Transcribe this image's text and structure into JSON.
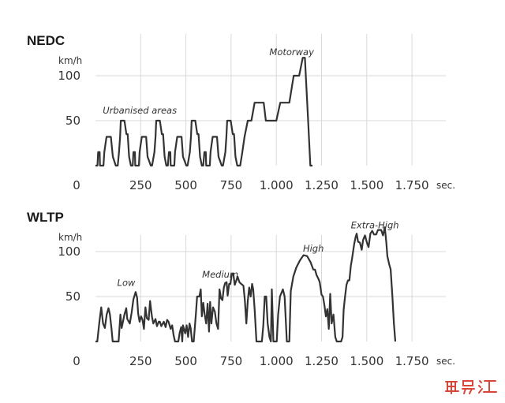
{
  "chart_data": [
    {
      "type": "line",
      "title": "NEDC",
      "unit": "km/h",
      "x_unit": "sec.",
      "x_ticks": [
        0,
        250,
        500,
        750,
        1000,
        1250,
        1500,
        1750
      ],
      "x_tick_labels": [
        "0",
        "250",
        "500",
        "750",
        "1.000",
        "1.250",
        "1.500",
        "1.750"
      ],
      "y_ticks": [
        50,
        100
      ],
      "y_tick_labels": [
        "50",
        "100"
      ],
      "xlim": [
        0,
        1800
      ],
      "ylim": [
        0,
        130
      ],
      "grid": true,
      "annotations": [
        {
          "text": "Urbanised areas",
          "x": 245,
          "y": 58
        },
        {
          "text": "Motorway",
          "x": 1085,
          "y": 123
        }
      ],
      "series": [
        {
          "values": [
            [
              0,
              0
            ],
            [
              11,
              0
            ],
            [
              15,
              15
            ],
            [
              23,
              15
            ],
            [
              25,
              0
            ],
            [
              44,
              0
            ],
            [
              49,
              15
            ],
            [
              61,
              32
            ],
            [
              85,
              32
            ],
            [
              96,
              10
            ],
            [
              112,
              0
            ],
            [
              118,
              0
            ],
            [
              123,
              0
            ],
            [
              130,
              15
            ],
            [
              136,
              32
            ],
            [
              140,
              50
            ],
            [
              152,
              50
            ],
            [
              160,
              50
            ],
            [
              171,
              35
            ],
            [
              178,
              35
            ],
            [
              186,
              10
            ],
            [
              196,
              0
            ],
            [
              206,
              0
            ],
            [
              210,
              15
            ],
            [
              218,
              15
            ],
            [
              220,
              0
            ],
            [
              240,
              0
            ],
            [
              244,
              15
            ],
            [
              256,
              32
            ],
            [
              280,
              32
            ],
            [
              288,
              10
            ],
            [
              306,
              0
            ],
            [
              313,
              0
            ],
            [
              326,
              15
            ],
            [
              332,
              32
            ],
            [
              336,
              50
            ],
            [
              348,
              50
            ],
            [
              356,
              50
            ],
            [
              367,
              35
            ],
            [
              374,
              35
            ],
            [
              382,
              10
            ],
            [
              392,
              0
            ],
            [
              400,
              0
            ],
            [
              406,
              15
            ],
            [
              414,
              15
            ],
            [
              416,
              0
            ],
            [
              436,
              0
            ],
            [
              440,
              15
            ],
            [
              452,
              32
            ],
            [
              476,
              32
            ],
            [
              484,
              10
            ],
            [
              502,
              0
            ],
            [
              509,
              0
            ],
            [
              522,
              15
            ],
            [
              528,
              32
            ],
            [
              532,
              50
            ],
            [
              544,
              50
            ],
            [
              552,
              50
            ],
            [
              563,
              35
            ],
            [
              570,
              35
            ],
            [
              578,
              10
            ],
            [
              588,
              0
            ],
            [
              596,
              0
            ],
            [
              602,
              15
            ],
            [
              610,
              15
            ],
            [
              612,
              0
            ],
            [
              632,
              0
            ],
            [
              636,
              15
            ],
            [
              648,
              32
            ],
            [
              672,
              32
            ],
            [
              680,
              10
            ],
            [
              698,
              0
            ],
            [
              705,
              0
            ],
            [
              718,
              15
            ],
            [
              724,
              32
            ],
            [
              728,
              50
            ],
            [
              740,
              50
            ],
            [
              748,
              50
            ],
            [
              759,
              35
            ],
            [
              766,
              35
            ],
            [
              774,
              10
            ],
            [
              784,
              0
            ],
            [
              800,
              0
            ],
            [
              812,
              15
            ],
            [
              824,
              32
            ],
            [
              842,
              50
            ],
            [
              862,
              50
            ],
            [
              880,
              70
            ],
            [
              930,
              70
            ],
            [
              942,
              50
            ],
            [
              1000,
              50
            ],
            [
              1022,
              70
            ],
            [
              1072,
              70
            ],
            [
              1096,
              100
            ],
            [
              1126,
              100
            ],
            [
              1146,
              120
            ],
            [
              1158,
              120
            ],
            [
              1176,
              50
            ],
            [
              1188,
              0
            ],
            [
              1200,
              0
            ]
          ]
        }
      ]
    },
    {
      "type": "line",
      "title": "WLTP",
      "unit": "km/h",
      "x_unit": "sec.",
      "x_ticks": [
        0,
        250,
        500,
        750,
        1000,
        1250,
        1500,
        1750
      ],
      "x_tick_labels": [
        "0",
        "250",
        "500",
        "750",
        "1.000",
        "1.250",
        "1.500",
        "1.750"
      ],
      "y_ticks": [
        50,
        100
      ],
      "y_tick_labels": [
        "50",
        "100"
      ],
      "xlim": [
        0,
        1800
      ],
      "ylim": [
        0,
        130
      ],
      "grid": true,
      "annotations": [
        {
          "text": "Low",
          "x": 170,
          "y": 62
        },
        {
          "text": "Medium",
          "x": 690,
          "y": 71
        },
        {
          "text": "High",
          "x": 1205,
          "y": 100
        },
        {
          "text": "Extra-High",
          "x": 1545,
          "y": 126
        }
      ],
      "series": [
        {
          "values": [
            [
              0,
              0
            ],
            [
              10,
              0
            ],
            [
              22,
              22
            ],
            [
              32,
              38
            ],
            [
              42,
              20
            ],
            [
              52,
              15
            ],
            [
              62,
              30
            ],
            [
              72,
              37
            ],
            [
              80,
              30
            ],
            [
              88,
              15
            ],
            [
              95,
              0
            ],
            [
              128,
              0
            ],
            [
              138,
              30
            ],
            [
              145,
              15
            ],
            [
              160,
              30
            ],
            [
              170,
              37
            ],
            [
              176,
              25
            ],
            [
              190,
              20
            ],
            [
              200,
              32
            ],
            [
              210,
              47
            ],
            [
              222,
              55
            ],
            [
              230,
              49
            ],
            [
              236,
              31
            ],
            [
              244,
              22
            ],
            [
              252,
              28
            ],
            [
              260,
              24
            ],
            [
              268,
              14
            ],
            [
              276,
              38
            ],
            [
              284,
              26
            ],
            [
              294,
              24
            ],
            [
              302,
              45
            ],
            [
              312,
              28
            ],
            [
              320,
              20
            ],
            [
              332,
              25
            ],
            [
              340,
              17
            ],
            [
              350,
              22
            ],
            [
              356,
              22
            ],
            [
              364,
              17
            ],
            [
              378,
              22
            ],
            [
              388,
              16
            ],
            [
              396,
              24
            ],
            [
              404,
              22
            ],
            [
              416,
              14
            ],
            [
              424,
              18
            ],
            [
              432,
              7
            ],
            [
              440,
              0
            ],
            [
              458,
              0
            ],
            [
              466,
              10
            ],
            [
              474,
              16
            ],
            [
              480,
              0
            ],
            [
              484,
              18
            ],
            [
              496,
              9
            ],
            [
              504,
              18
            ],
            [
              512,
              5
            ],
            [
              520,
              20
            ],
            [
              526,
              15
            ],
            [
              534,
              0
            ],
            [
              543,
              0
            ],
            [
              555,
              30
            ],
            [
              562,
              50
            ],
            [
              574,
              50
            ],
            [
              582,
              58
            ],
            [
              588,
              28
            ],
            [
              596,
              43
            ],
            [
              604,
              30
            ],
            [
              612,
              20
            ],
            [
              620,
              42
            ],
            [
              628,
              11
            ],
            [
              634,
              44
            ],
            [
              641,
              20
            ],
            [
              650,
              38
            ],
            [
              660,
              33
            ],
            [
              669,
              20
            ],
            [
              678,
              14
            ],
            [
              686,
              58
            ],
            [
              694,
              48
            ],
            [
              702,
              46
            ],
            [
              710,
              60
            ],
            [
              717,
              65
            ],
            [
              725,
              66
            ],
            [
              731,
              51
            ],
            [
              739,
              64
            ],
            [
              746,
              64
            ],
            [
              754,
              75
            ],
            [
              762,
              75
            ],
            [
              770,
              63
            ],
            [
              786,
              72
            ],
            [
              796,
              66
            ],
            [
              806,
              64
            ],
            [
              818,
              62
            ],
            [
              826,
              46
            ],
            [
              834,
              20
            ],
            [
              842,
              45
            ],
            [
              850,
              60
            ],
            [
              858,
              50
            ],
            [
              866,
              64
            ],
            [
              872,
              58
            ],
            [
              880,
              36
            ],
            [
              890,
              0
            ],
            [
              920,
              0
            ],
            [
              928,
              18
            ],
            [
              936,
              50
            ],
            [
              944,
              50
            ],
            [
              952,
              20
            ],
            [
              962,
              5
            ],
            [
              970,
              0
            ],
            [
              975,
              58
            ],
            [
              984,
              0
            ],
            [
              994,
              0
            ],
            [
              1002,
              0
            ],
            [
              1010,
              30
            ],
            [
              1020,
              50
            ],
            [
              1036,
              58
            ],
            [
              1046,
              50
            ],
            [
              1058,
              0
            ],
            [
              1072,
              0
            ],
            [
              1080,
              56
            ],
            [
              1094,
              72
            ],
            [
              1110,
              82
            ],
            [
              1130,
              90
            ],
            [
              1150,
              96
            ],
            [
              1170,
              95
            ],
            [
              1190,
              88
            ],
            [
              1204,
              80
            ],
            [
              1214,
              80
            ],
            [
              1222,
              74
            ],
            [
              1232,
              70
            ],
            [
              1240,
              66
            ],
            [
              1250,
              52
            ],
            [
              1258,
              50
            ],
            [
              1266,
              40
            ],
            [
              1274,
              28
            ],
            [
              1282,
              36
            ],
            [
              1290,
              14
            ],
            [
              1298,
              53
            ],
            [
              1306,
              20
            ],
            [
              1316,
              30
            ],
            [
              1326,
              5
            ],
            [
              1334,
              0
            ],
            [
              1358,
              0
            ],
            [
              1366,
              5
            ],
            [
              1372,
              35
            ],
            [
              1380,
              50
            ],
            [
              1388,
              63
            ],
            [
              1396,
              68
            ],
            [
              1404,
              68
            ],
            [
              1412,
              84
            ],
            [
              1420,
              94
            ],
            [
              1430,
              108
            ],
            [
              1438,
              116
            ],
            [
              1444,
              120
            ],
            [
              1452,
              111
            ],
            [
              1462,
              110
            ],
            [
              1472,
              102
            ],
            [
              1480,
              113
            ],
            [
              1490,
              118
            ],
            [
              1502,
              109
            ],
            [
              1510,
              105
            ],
            [
              1520,
              120
            ],
            [
              1530,
              123
            ],
            [
              1540,
              119
            ],
            [
              1552,
              119
            ],
            [
              1562,
              124
            ],
            [
              1572,
              124
            ],
            [
              1580,
              124
            ],
            [
              1590,
              118
            ],
            [
              1600,
              127
            ],
            [
              1608,
              110
            ],
            [
              1614,
              95
            ],
            [
              1624,
              86
            ],
            [
              1632,
              80
            ],
            [
              1642,
              50
            ],
            [
              1650,
              20
            ],
            [
              1658,
              0
            ]
          ]
        }
      ]
    }
  ],
  "watermark": {
    "text": "里马汇"
  }
}
